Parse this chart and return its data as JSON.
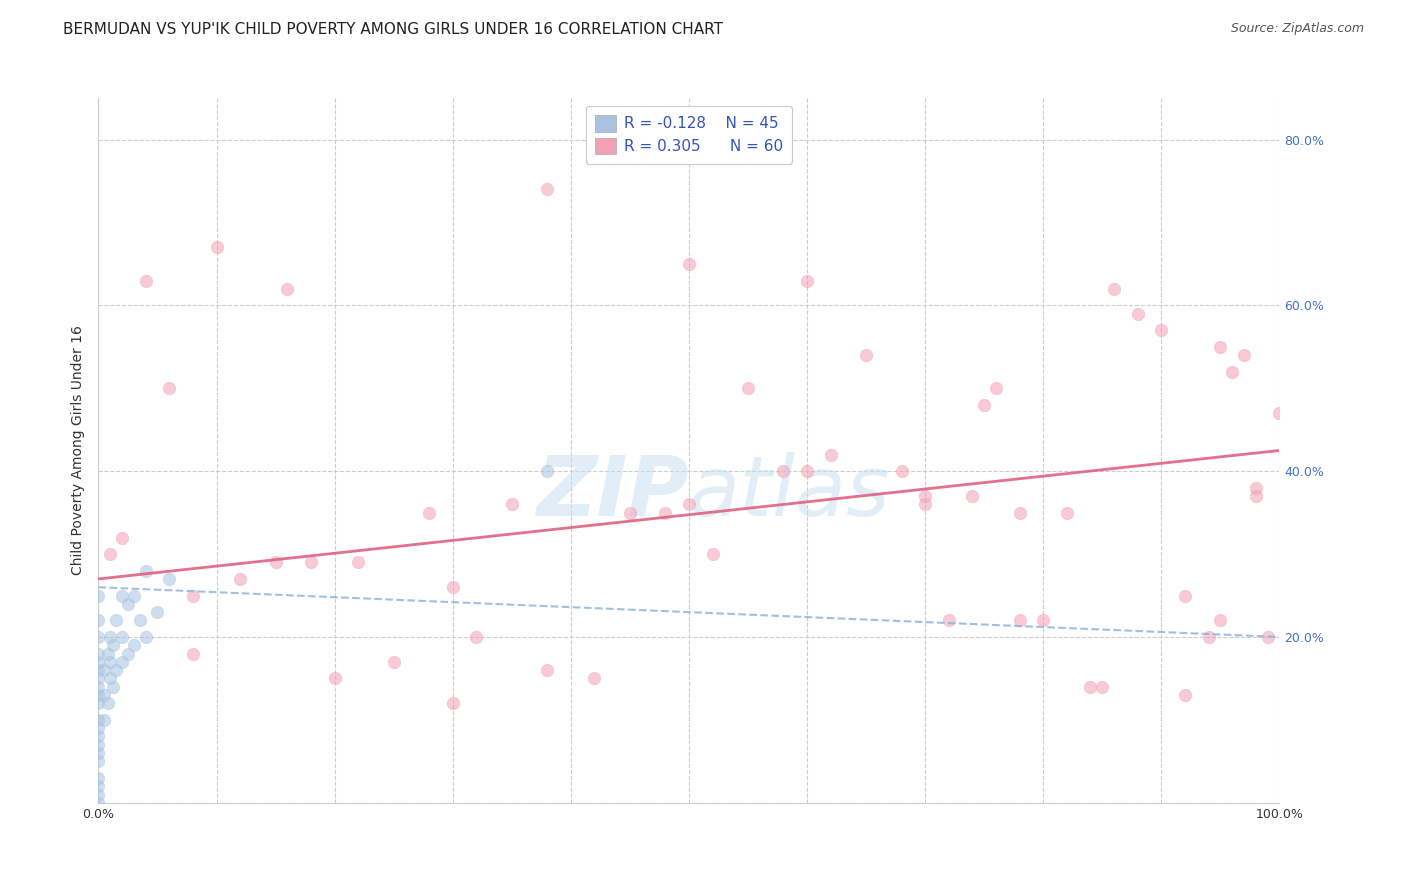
{
  "title": "BERMUDAN VS YUP'IK CHILD POVERTY AMONG GIRLS UNDER 16 CORRELATION CHART",
  "source": "Source: ZipAtlas.com",
  "ylabel": "Child Poverty Among Girls Under 16",
  "xlim": [
    0.0,
    1.0
  ],
  "ylim": [
    0.0,
    0.85
  ],
  "xticks": [
    0.0,
    0.1,
    0.2,
    0.3,
    0.4,
    0.5,
    0.6,
    0.7,
    0.8,
    0.9,
    1.0
  ],
  "xticklabels": [
    "0.0%",
    "",
    "",
    "",
    "",
    "",
    "",
    "",
    "",
    "",
    "100.0%"
  ],
  "ytick_positions": [
    0.0,
    0.2,
    0.4,
    0.6,
    0.8
  ],
  "yticklabels_right": [
    "",
    "20.0%",
    "40.0%",
    "60.0%",
    "80.0%"
  ],
  "legend_r_bermudan": "-0.128",
  "legend_n_bermudan": "45",
  "legend_r_yupik": "0.305",
  "legend_n_yupik": "60",
  "bermudan_color": "#a8c4e0",
  "yupik_color": "#f4a0b5",
  "bermudan_line_color": "#8ab0d8",
  "yupik_line_color": "#e06080",
  "bermudan_x": [
    0.0,
    0.0,
    0.0,
    0.0,
    0.0,
    0.0,
    0.0,
    0.0,
    0.0,
    0.0,
    0.0,
    0.0,
    0.0,
    0.0,
    0.0,
    0.0,
    0.0,
    0.0,
    0.0,
    0.0,
    0.005,
    0.005,
    0.005,
    0.008,
    0.008,
    0.01,
    0.01,
    0.01,
    0.012,
    0.012,
    0.015,
    0.015,
    0.02,
    0.02,
    0.02,
    0.025,
    0.025,
    0.03,
    0.03,
    0.035,
    0.04,
    0.04,
    0.05,
    0.06,
    0.38
  ],
  "bermudan_y": [
    0.0,
    0.01,
    0.02,
    0.03,
    0.05,
    0.06,
    0.07,
    0.08,
    0.09,
    0.1,
    0.12,
    0.13,
    0.14,
    0.15,
    0.16,
    0.17,
    0.18,
    0.2,
    0.22,
    0.25,
    0.1,
    0.13,
    0.16,
    0.12,
    0.18,
    0.15,
    0.17,
    0.2,
    0.14,
    0.19,
    0.16,
    0.22,
    0.17,
    0.2,
    0.25,
    0.18,
    0.24,
    0.19,
    0.25,
    0.22,
    0.2,
    0.28,
    0.23,
    0.27,
    0.4
  ],
  "yupik_x": [
    0.01,
    0.02,
    0.04,
    0.06,
    0.08,
    0.1,
    0.12,
    0.15,
    0.18,
    0.2,
    0.22,
    0.25,
    0.28,
    0.3,
    0.32,
    0.35,
    0.38,
    0.42,
    0.45,
    0.48,
    0.5,
    0.52,
    0.55,
    0.58,
    0.6,
    0.62,
    0.65,
    0.68,
    0.7,
    0.72,
    0.74,
    0.76,
    0.78,
    0.8,
    0.82,
    0.84,
    0.86,
    0.88,
    0.9,
    0.92,
    0.94,
    0.95,
    0.96,
    0.97,
    0.98,
    0.99,
    1.0,
    0.3,
    0.5,
    0.7,
    0.08,
    0.16,
    0.38,
    0.6,
    0.75,
    0.85,
    0.92,
    0.95,
    0.98,
    0.78
  ],
  "yupik_y": [
    0.3,
    0.32,
    0.63,
    0.5,
    0.18,
    0.67,
    0.27,
    0.29,
    0.29,
    0.15,
    0.29,
    0.17,
    0.35,
    0.26,
    0.2,
    0.36,
    0.74,
    0.15,
    0.35,
    0.35,
    0.36,
    0.3,
    0.5,
    0.4,
    0.4,
    0.42,
    0.54,
    0.4,
    0.37,
    0.22,
    0.37,
    0.5,
    0.22,
    0.22,
    0.35,
    0.14,
    0.62,
    0.59,
    0.57,
    0.13,
    0.2,
    0.55,
    0.52,
    0.54,
    0.37,
    0.2,
    0.47,
    0.12,
    0.65,
    0.36,
    0.25,
    0.62,
    0.16,
    0.63,
    0.48,
    0.14,
    0.25,
    0.22,
    0.38,
    0.35
  ],
  "background_color": "#ffffff",
  "grid_color": "#cccccc",
  "title_fontsize": 11,
  "source_fontsize": 9,
  "ylabel_fontsize": 10,
  "tick_label_fontsize": 9,
  "marker_size": 80,
  "marker_alpha": 0.55,
  "watermark_color": "#c5dff0",
  "watermark_alpha": 0.5,
  "right_tick_color": "#4472c4",
  "bermudan_line_slope": -0.06,
  "bermudan_line_intercept": 0.26,
  "yupik_line_slope": 0.155,
  "yupik_line_intercept": 0.27
}
